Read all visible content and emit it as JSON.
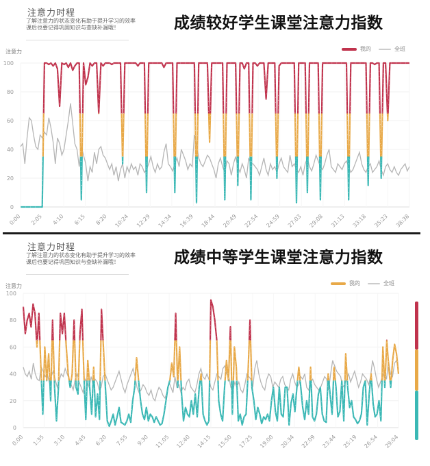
{
  "colors": {
    "red": "#c0334d",
    "orange": "#e8a948",
    "teal": "#3bb8b5",
    "gray": "#b5b5b5",
    "axis": "#dddddd",
    "tick_text": "#999999"
  },
  "thresholds": {
    "low": 35,
    "high": 65
  },
  "chart_data": [
    {
      "type": "line",
      "title": "成绩较好学生课堂注意力指数",
      "subtitle": "注意力时程",
      "description": "了解注意力的状态变化有助于提升学习的效率 课后也要记得巩固知识与查缺补漏哦！",
      "ylabel": "注意力",
      "xlabel": "",
      "ylim": [
        0,
        100
      ],
      "yticks": [
        0,
        20,
        40,
        60,
        80,
        100
      ],
      "grid": true,
      "legend_position": "top-right",
      "x": [
        "0:00",
        "2:05",
        "4:10",
        "6:15",
        "8:20",
        "10:24",
        "12:29",
        "14:34",
        "16:39",
        "18:44",
        "20:49",
        "22:54",
        "24:59",
        "27:03",
        "29:08",
        "31:13",
        "33:18",
        "35:23",
        "38:38"
      ],
      "series": [
        {
          "name": "我的",
          "color_mode": "threshold",
          "values": [
            0,
            0,
            0,
            0,
            0,
            0,
            0,
            0,
            0,
            0,
            0,
            100,
            100,
            99,
            100,
            98,
            100,
            96,
            70,
            100,
            99,
            100,
            97,
            100,
            95,
            98,
            100,
            100,
            5,
            100,
            85,
            90,
            100,
            98,
            100,
            100,
            65,
            100,
            98,
            100,
            100,
            100,
            99,
            100,
            100,
            100,
            100,
            30,
            100,
            100,
            100,
            100,
            100,
            100,
            98,
            100,
            100,
            100,
            10,
            100,
            100,
            100,
            100,
            100,
            100,
            100,
            97,
            100,
            100,
            100,
            100,
            10,
            100,
            100,
            100,
            100,
            100,
            100,
            100,
            100,
            100,
            3,
            100,
            100,
            100,
            100,
            100,
            45,
            100,
            100,
            100,
            100,
            100,
            100,
            5,
            100,
            100,
            100,
            100,
            100,
            15,
            100,
            100,
            96,
            100,
            100,
            5,
            100,
            100,
            98,
            100,
            100,
            100,
            75,
            100,
            100,
            100,
            100,
            20,
            98,
            100,
            100,
            100,
            100,
            100,
            100,
            100,
            3,
            100,
            100,
            100,
            100,
            10,
            100,
            100,
            100,
            100,
            100,
            5,
            100,
            100,
            100,
            100,
            100,
            100,
            100,
            100,
            100,
            100,
            100,
            100,
            5,
            100,
            100,
            100,
            100,
            100,
            100,
            100,
            100,
            15,
            100,
            100,
            99,
            100,
            100,
            20,
            100,
            100,
            60,
            100,
            100,
            100,
            100,
            100,
            100,
            100,
            100,
            100,
            100
          ]
        },
        {
          "name": "全班",
          "color_mode": "fixed",
          "values": [
            42,
            44,
            30,
            48,
            62,
            60,
            50,
            42,
            40,
            50,
            48,
            52,
            50,
            62,
            55,
            45,
            30,
            48,
            44,
            36,
            40,
            50,
            60,
            72,
            58,
            44,
            40,
            28,
            42,
            36,
            30,
            18,
            28,
            24,
            38,
            30,
            40,
            42,
            36,
            34,
            30,
            26,
            30,
            22,
            28,
            18,
            26,
            30,
            20,
            28,
            24,
            30,
            26,
            28,
            22,
            30,
            28,
            24,
            26,
            30,
            35,
            28,
            24,
            30,
            26,
            28,
            38,
            44,
            30,
            28,
            25,
            30,
            34,
            28,
            40,
            36,
            32,
            26,
            30,
            28,
            50,
            44,
            34,
            30,
            28,
            32,
            36,
            34,
            30,
            26,
            20,
            30,
            34,
            28,
            24,
            32,
            30,
            22,
            30,
            35,
            28,
            24,
            30,
            26,
            20,
            34,
            30,
            30,
            28,
            26,
            22,
            28,
            34,
            26,
            22,
            30,
            26,
            28,
            24,
            30,
            34,
            28,
            26,
            24,
            36,
            28,
            30,
            26,
            24,
            28,
            22,
            30,
            34,
            28,
            25,
            30,
            36,
            32,
            28,
            26,
            30,
            36,
            40,
            28,
            26,
            24,
            30,
            28,
            26,
            30,
            32,
            28,
            24,
            26,
            30,
            34,
            38,
            30,
            26,
            24,
            28,
            30,
            24,
            26,
            28,
            32,
            26,
            22,
            28,
            30,
            26,
            24,
            28,
            24,
            22,
            26,
            28,
            30,
            25,
            28
          ]
        }
      ]
    },
    {
      "type": "line",
      "title": "成绩中等学生课堂注意力指数",
      "subtitle": "注意力时程",
      "description": "了解注意力的状态变化有助于提升学习的效率 课后也要记得巩固知识与查缺补漏哦！",
      "ylabel": "注意力",
      "xlabel": "",
      "ylim": [
        0,
        100
      ],
      "yticks": [
        0,
        20,
        40,
        60,
        80,
        100
      ],
      "grid": true,
      "legend_position": "top-right",
      "x": [
        "0:00",
        "1:35",
        "3:10",
        "4:45",
        "6:20",
        "7:55",
        "9:30",
        "11:05",
        "12:40",
        "14:15",
        "15:50",
        "17:25",
        "19:00",
        "20:34",
        "22:09",
        "23:44",
        "25:19",
        "26:54",
        "29:04"
      ],
      "series": [
        {
          "name": "我的",
          "color_mode": "threshold",
          "values": [
            90,
            70,
            80,
            85,
            75,
            92,
            85,
            60,
            85,
            45,
            10,
            60,
            35,
            55,
            20,
            80,
            30,
            5,
            30,
            85,
            70,
            85,
            60,
            40,
            30,
            40,
            80,
            30,
            25,
            70,
            88,
            40,
            6,
            50,
            30,
            10,
            45,
            8,
            25,
            6,
            88,
            60,
            30,
            5,
            1,
            5,
            10,
            2,
            8,
            15,
            4,
            3,
            2,
            5,
            10,
            4,
            20,
            30,
            52,
            35,
            20,
            10,
            6,
            15,
            5,
            10,
            8,
            4,
            8,
            5,
            2,
            3,
            10,
            20,
            30,
            35,
            48,
            38,
            85,
            30,
            60,
            25,
            5,
            15,
            10,
            8,
            20,
            10,
            25,
            8,
            30,
            40,
            10,
            5,
            2,
            5,
            95,
            90,
            80,
            65,
            20,
            10,
            5,
            30,
            50,
            35,
            75,
            10,
            60,
            45,
            5,
            10,
            2,
            8,
            10,
            40,
            80,
            30,
            20,
            6,
            15,
            10,
            3,
            8,
            6,
            10,
            5,
            20,
            30,
            12,
            5,
            30,
            10,
            8,
            30,
            30,
            2,
            18,
            25,
            12,
            30,
            45,
            30,
            15,
            6,
            20,
            10,
            45,
            8,
            5,
            10,
            25,
            30,
            10,
            5,
            4,
            40,
            25,
            10,
            45,
            30,
            8,
            12,
            35,
            5,
            55,
            30,
            15,
            20,
            8,
            6,
            3,
            5,
            10,
            30,
            35,
            2,
            25,
            40,
            18,
            8,
            10,
            20,
            5,
            60,
            30,
            65,
            45,
            30,
            50,
            62,
            55,
            40
          ]
        },
        {
          "name": "全班",
          "color_mode": "fixed",
          "values": [
            45,
            40,
            38,
            42,
            36,
            48,
            40,
            36,
            35,
            45,
            42,
            38,
            40,
            34,
            38,
            42,
            36,
            30,
            35,
            40,
            38,
            44,
            40,
            36,
            32,
            28,
            36,
            40,
            34,
            30,
            26,
            36,
            34,
            30,
            38,
            32,
            36,
            34,
            28,
            30,
            38,
            40,
            36,
            32,
            28,
            30,
            34,
            38,
            42,
            36,
            30,
            26,
            32,
            36,
            40,
            44,
            38,
            30,
            26,
            28,
            32,
            30,
            26,
            24,
            28,
            22,
            20,
            26,
            30,
            28,
            24,
            22,
            26,
            34,
            30,
            26,
            38,
            30,
            32,
            26,
            30,
            28,
            34,
            36,
            30,
            28,
            26,
            32,
            40,
            44,
            38,
            36,
            40,
            36,
            30,
            28,
            34,
            40,
            38,
            36,
            44,
            46,
            40,
            38,
            30,
            28,
            34,
            30,
            34,
            28,
            26,
            32,
            40,
            38,
            36,
            30,
            44,
            50,
            40,
            34,
            30,
            28,
            36,
            40,
            38,
            30,
            34,
            32,
            30,
            36,
            38,
            32,
            30,
            28,
            36,
            40,
            34,
            30,
            32,
            38,
            36,
            40,
            30,
            28,
            34,
            36,
            32,
            30,
            28,
            30,
            34,
            38,
            36,
            28,
            40,
            50,
            46,
            42,
            40,
            38,
            30,
            32,
            36,
            40,
            34,
            38,
            42,
            36,
            30,
            34,
            40,
            38,
            36,
            32,
            38,
            50,
            44,
            36,
            30,
            34,
            38,
            42,
            36,
            50,
            40,
            38,
            48,
            50,
            44
          ]
        }
      ]
    }
  ],
  "panels": {
    "top": {
      "section_title": "注意力时程",
      "section_desc_line1": "了解注意力的状态变化有助于提升学习的效率",
      "section_desc_line2": "课后也要记得巩固知识与查缺补漏哦！",
      "big_title": "成绩较好学生课堂注意力指数",
      "y_axis_label": "注意力",
      "legend_mine": "我的",
      "legend_class": "全班",
      "legend_mine_color": "#c0334d"
    },
    "bottom": {
      "section_title": "注意力时程",
      "section_desc_line1": "了解注意力的状态变化有助于提升学习的效率",
      "section_desc_line2": "课后也要记得巩固知识与查缺补漏哦！",
      "big_title": "成绩中等学生课堂注意力指数",
      "y_axis_label": "注意力",
      "legend_mine": "我的",
      "legend_class": "全班",
      "legend_mine_color": "#e8a948"
    }
  }
}
